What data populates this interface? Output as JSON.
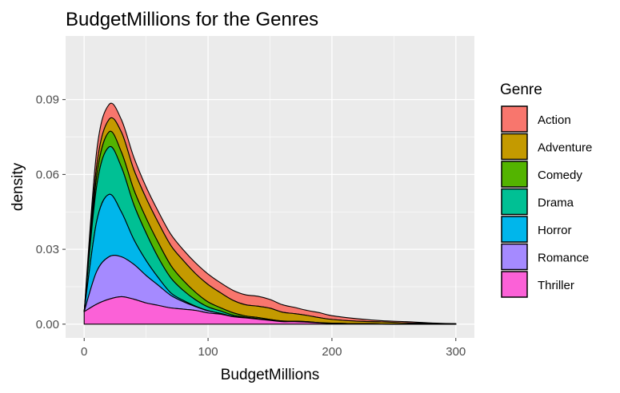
{
  "chart_data": {
    "type": "area",
    "stacked": true,
    "title": "BudgetMillions for the Genres",
    "xlabel": "BudgetMillions",
    "ylabel": "density",
    "xlim": [
      -15,
      315
    ],
    "ylim": [
      -0.0055,
      0.1155
    ],
    "x_ticks": [
      0,
      100,
      200,
      300
    ],
    "x_tick_labels": [
      "0",
      "100",
      "200",
      "300"
    ],
    "y_ticks": [
      0.0,
      0.03,
      0.06,
      0.09
    ],
    "y_tick_labels": [
      "0.00",
      "0.03",
      "0.06",
      "0.09"
    ],
    "grid": true,
    "legend": {
      "title": "Genre",
      "position": "right"
    },
    "x": [
      0,
      10,
      20,
      30,
      40,
      50,
      60,
      70,
      80,
      90,
      100,
      110,
      120,
      130,
      140,
      150,
      160,
      170,
      180,
      190,
      200,
      220,
      240,
      260,
      280,
      300
    ],
    "series": [
      {
        "name": "Action",
        "color": "#F8766D",
        "values": [
          0.0,
          0.006,
          0.006,
          0.005,
          0.005,
          0.0045,
          0.0045,
          0.0045,
          0.0043,
          0.0043,
          0.0042,
          0.004,
          0.004,
          0.004,
          0.004,
          0.0035,
          0.003,
          0.0025,
          0.002,
          0.002,
          0.0015,
          0.001,
          0.0005,
          0.0005,
          0.0002,
          0.0
        ]
      },
      {
        "name": "Adventure",
        "color": "#C49A00",
        "values": [
          0.0,
          0.004,
          0.005,
          0.008,
          0.008,
          0.008,
          0.008,
          0.008,
          0.008,
          0.0075,
          0.007,
          0.006,
          0.005,
          0.0045,
          0.0045,
          0.0045,
          0.0035,
          0.003,
          0.0025,
          0.002,
          0.0015,
          0.001,
          0.0008,
          0.0005,
          0.0003,
          0.0002
        ]
      },
      {
        "name": "Comedy",
        "color": "#53B400",
        "values": [
          0.0,
          0.004,
          0.006,
          0.006,
          0.006,
          0.006,
          0.006,
          0.005,
          0.004,
          0.003,
          0.002,
          0.0013,
          0.001,
          0.0005,
          0.0005,
          0.0003,
          0.0003,
          0.0002,
          0.0002,
          0.0001,
          0.0001,
          0.0,
          0.0,
          0.0,
          0.0,
          0.0
        ]
      },
      {
        "name": "Drama",
        "color": "#00C094",
        "values": [
          0.0,
          0.014,
          0.019,
          0.018,
          0.014,
          0.011,
          0.008,
          0.006,
          0.004,
          0.0025,
          0.0015,
          0.001,
          0.0005,
          0.0003,
          0.0002,
          0.0001,
          0.0,
          0.0,
          0.0,
          0.0,
          0.0,
          0.0,
          0.0,
          0.0,
          0.0,
          0.0
        ]
      },
      {
        "name": "Horror",
        "color": "#00B6EB",
        "values": [
          0.0,
          0.02,
          0.025,
          0.018,
          0.01,
          0.006,
          0.003,
          0.001,
          0.0005,
          0.0002,
          0.0001,
          0.0,
          0.0,
          0.0,
          0.0,
          0.0,
          0.0,
          0.0,
          0.0,
          0.0,
          0.0,
          0.0,
          0.0,
          0.0,
          0.0,
          0.0
        ]
      },
      {
        "name": "Romance",
        "color": "#A58AFF",
        "values": [
          0.0,
          0.013,
          0.017,
          0.016,
          0.014,
          0.011,
          0.008,
          0.005,
          0.003,
          0.0015,
          0.0008,
          0.0003,
          0.0001,
          0.0,
          0.0,
          0.0,
          0.0,
          0.0,
          0.0,
          0.0,
          0.0,
          0.0,
          0.0,
          0.0,
          0.0,
          0.0
        ]
      },
      {
        "name": "Thriller",
        "color": "#FB61D7",
        "values": [
          0.005,
          0.008,
          0.01,
          0.011,
          0.01,
          0.0085,
          0.0075,
          0.0065,
          0.006,
          0.0055,
          0.0045,
          0.004,
          0.003,
          0.0025,
          0.002,
          0.0015,
          0.001,
          0.001,
          0.0008,
          0.0005,
          0.0003,
          0.0002,
          0.0001,
          0.0,
          0.0,
          0.0
        ]
      }
    ]
  }
}
